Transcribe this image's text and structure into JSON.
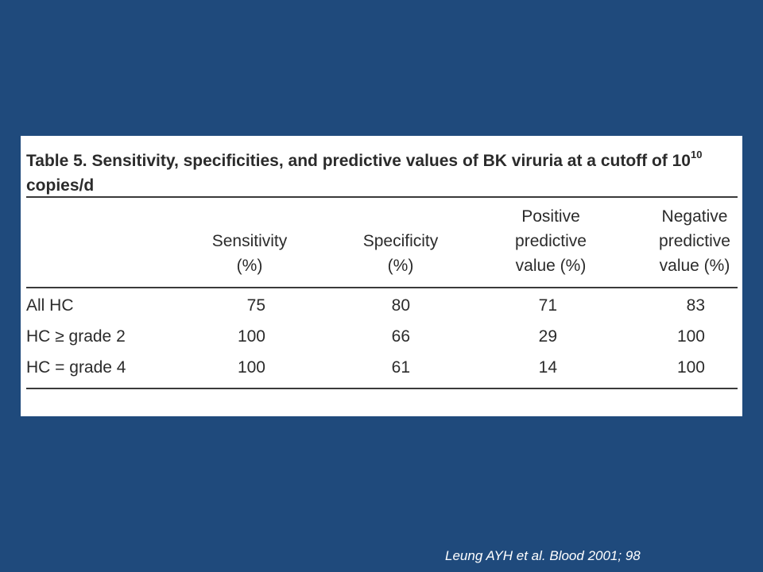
{
  "table": {
    "title_prefix": "Table 5.  Sensitivity, specificities, and predictive values of BK viruria at a cutoff of 10",
    "title_sup": "10",
    "title_suffix": " copies/d",
    "headers": [
      [
        "Sensitivity",
        "(%)"
      ],
      [
        "Specificity",
        "(%)"
      ],
      [
        "Positive",
        "predictive",
        "value (%)"
      ],
      [
        "Negative",
        "predictive",
        "value (%)"
      ]
    ],
    "rows": [
      {
        "label": "All HC",
        "values": [
          "75",
          "80",
          "71",
          "83"
        ]
      },
      {
        "label": "HC ≥ grade 2",
        "values": [
          "100",
          "66",
          "29",
          "100"
        ]
      },
      {
        "label": "HC = grade 4",
        "values": [
          "100",
          "61",
          "14",
          "100"
        ]
      }
    ]
  },
  "citation": "Leung AYH et al. Blood 2001; 98",
  "colors": {
    "background": "#1f4a7c",
    "panel": "#ffffff",
    "text": "#2b2b2b"
  }
}
